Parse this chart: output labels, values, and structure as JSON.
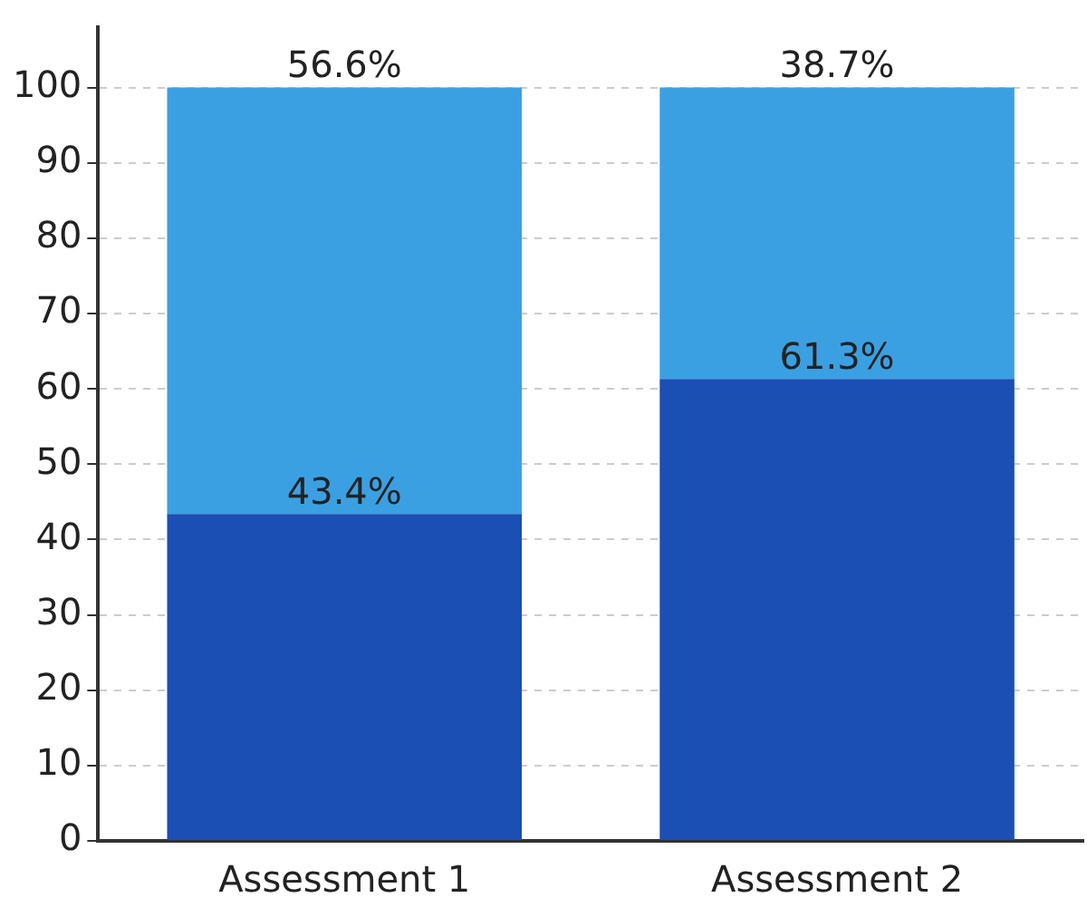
{
  "chart_data": {
    "type": "bar",
    "stacked": true,
    "categories": [
      "Assessment 1",
      "Assessment 2"
    ],
    "series": [
      {
        "color": "#1b4fb4",
        "values": [
          43.4,
          61.3
        ],
        "value_labels": [
          "43.4%",
          "61.3%"
        ]
      },
      {
        "color": "#3ba0e2",
        "values": [
          56.6,
          38.7
        ],
        "value_labels": [
          "56.6%",
          "38.7%"
        ]
      }
    ],
    "ylim": [
      0,
      108
    ],
    "yticks": [
      0,
      10,
      20,
      30,
      40,
      50,
      60,
      70,
      80,
      90,
      100
    ],
    "grid": "y",
    "legend": false
  }
}
